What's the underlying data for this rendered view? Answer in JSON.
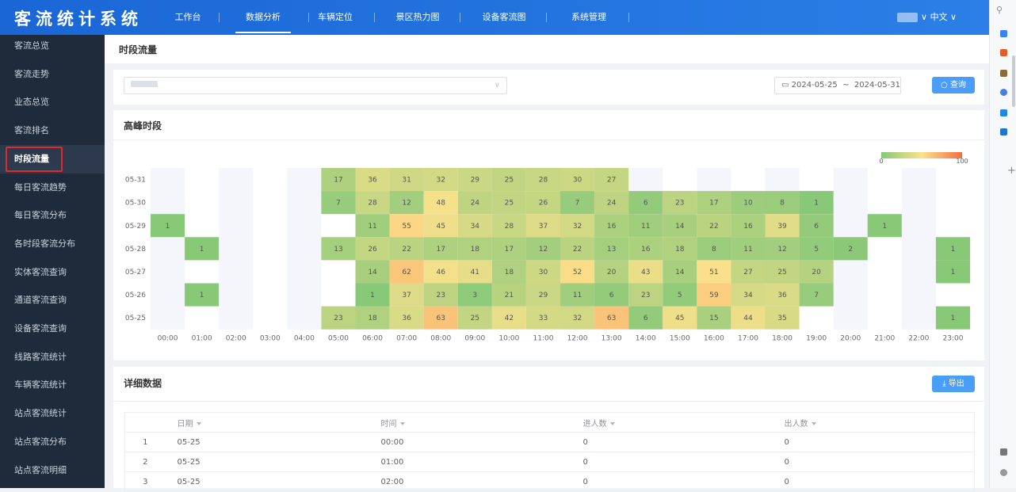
{
  "header": {
    "logo": "客流统计系统",
    "nav": [
      "工作台",
      "数据分析",
      "车辆定位",
      "景区热力图",
      "设备客流图",
      "系统管理"
    ],
    "active_nav": 1,
    "language": "中文"
  },
  "sidebar": {
    "items": [
      "客流总览",
      "客流走势",
      "业态总览",
      "客流排名",
      "时段流量",
      "每日客流趋势",
      "每日客流分布",
      "各时段客流分布",
      "实体客流查询",
      "通道客流查询",
      "设备客流查询",
      "线路客流统计",
      "车辆客流统计",
      "站点客流统计",
      "站点客流分布",
      "站点客流明细"
    ],
    "active": 4
  },
  "page_title": "时段流量",
  "filter": {
    "date_start": "2024-05-25",
    "date_sep": "~",
    "date_end": "2024-05-31",
    "query_button": "查询"
  },
  "chart_data": {
    "type": "heatmap",
    "title": "高峰时段",
    "x": [
      "00:00",
      "01:00",
      "02:00",
      "03:00",
      "04:00",
      "05:00",
      "06:00",
      "07:00",
      "08:00",
      "09:00",
      "10:00",
      "11:00",
      "12:00",
      "13:00",
      "14:00",
      "15:00",
      "16:00",
      "17:00",
      "18:00",
      "19:00",
      "20:00",
      "21:00",
      "22:00",
      "23:00"
    ],
    "y": [
      "05-31",
      "05-30",
      "05-29",
      "05-28",
      "05-27",
      "05-26",
      "05-25"
    ],
    "values": [
      [
        null,
        null,
        null,
        null,
        null,
        17,
        36,
        31,
        32,
        29,
        25,
        28,
        30,
        27,
        null,
        null,
        null,
        null,
        null,
        null,
        null,
        null,
        null,
        null
      ],
      [
        null,
        null,
        null,
        null,
        null,
        7,
        28,
        12,
        48,
        24,
        25,
        26,
        7,
        24,
        6,
        23,
        17,
        10,
        8,
        1,
        null,
        null,
        null,
        null
      ],
      [
        1,
        null,
        null,
        null,
        null,
        null,
        11,
        55,
        45,
        34,
        28,
        37,
        32,
        16,
        11,
        14,
        22,
        16,
        39,
        6,
        null,
        1,
        null,
        null
      ],
      [
        null,
        1,
        null,
        null,
        null,
        13,
        26,
        22,
        17,
        18,
        17,
        12,
        22,
        13,
        16,
        18,
        8,
        11,
        12,
        5,
        2,
        null,
        null,
        1
      ],
      [
        null,
        null,
        null,
        null,
        null,
        null,
        14,
        62,
        46,
        41,
        18,
        30,
        52,
        20,
        43,
        14,
        51,
        27,
        25,
        20,
        null,
        null,
        null,
        1
      ],
      [
        null,
        1,
        null,
        null,
        null,
        null,
        1,
        37,
        23,
        3,
        21,
        29,
        11,
        6,
        23,
        5,
        59,
        34,
        36,
        7,
        null,
        null,
        null,
        null
      ],
      [
        null,
        null,
        null,
        null,
        null,
        23,
        18,
        36,
        63,
        25,
        42,
        33,
        32,
        63,
        6,
        45,
        15,
        44,
        35,
        null,
        null,
        null,
        null,
        1
      ]
    ],
    "visual_map": {
      "min": 0,
      "max": 100,
      "colors": [
        "#86c878",
        "#fbe28c",
        "#f46d43"
      ]
    }
  },
  "detail": {
    "title": "详细数据",
    "export_button": "导出"
  },
  "table": {
    "columns": [
      "日期",
      "时间",
      "进人数",
      "出人数"
    ],
    "rows": [
      [
        "1",
        "05-25",
        "00:00",
        "0",
        "0"
      ],
      [
        "2",
        "05-25",
        "01:00",
        "0",
        "0"
      ],
      [
        "3",
        "05-25",
        "02:00",
        "0",
        "0"
      ]
    ]
  }
}
